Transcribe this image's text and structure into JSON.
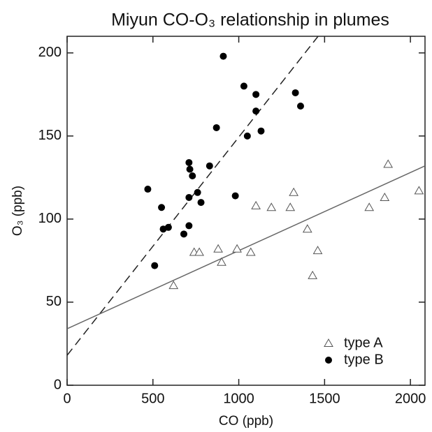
{
  "chart_data": {
    "type": "scatter",
    "title": "Miyun CO-O₃ relationship in plumes",
    "xlabel": "CO (ppb)",
    "ylabel": "O₃ (ppb)",
    "xlim": [
      0,
      2085
    ],
    "ylim": [
      0,
      210
    ],
    "xticks": [
      0,
      500,
      1000,
      1500,
      2000
    ],
    "yticks": [
      0,
      50,
      100,
      150,
      200
    ],
    "legend": "lower right",
    "series": [
      {
        "name": "type A",
        "color": "#555555",
        "marker": "triangle-open",
        "x": [
          620,
          740,
          770,
          880,
          900,
          990,
          1070,
          1100,
          1190,
          1300,
          1320,
          1400,
          1430,
          1460,
          1760,
          1850,
          1870,
          2050
        ],
        "values": [
          60,
          80,
          80,
          82,
          74,
          82,
          80,
          108,
          107,
          107,
          116,
          94,
          66,
          81,
          107,
          113,
          133,
          117
        ]
      },
      {
        "name": "type B",
        "color": "#000000",
        "marker": "circle-filled",
        "x": [
          470,
          510,
          550,
          560,
          590,
          680,
          710,
          710,
          710,
          715,
          730,
          760,
          780,
          830,
          870,
          910,
          980,
          1030,
          1050,
          1100,
          1100,
          1130,
          1330,
          1360
        ],
        "values": [
          118,
          72,
          107,
          94,
          95,
          91,
          96,
          113,
          134,
          130,
          126,
          116,
          110,
          132,
          155,
          198,
          114,
          180,
          150,
          175,
          165,
          153,
          176,
          168
        ]
      }
    ],
    "fit_lines": [
      {
        "style": "dashed",
        "color": "#222222",
        "x": [
          0,
          1462
        ],
        "values": [
          18,
          210
        ]
      },
      {
        "style": "solid",
        "color": "#666666",
        "x": [
          0,
          2085
        ],
        "values": [
          34,
          132
        ]
      }
    ]
  }
}
